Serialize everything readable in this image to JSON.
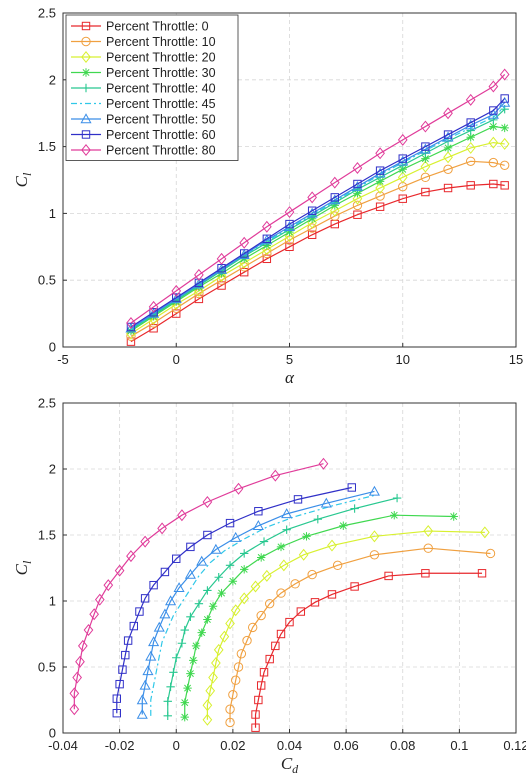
{
  "chart_data": [
    {
      "type": "line",
      "xlabel": "α",
      "ylabel": "C",
      "ylabel_sub": "l",
      "xlim": [
        -5,
        15
      ],
      "ylim": [
        0,
        2.5
      ],
      "xticks": [
        "-5",
        "0",
        "5",
        "10",
        "15"
      ],
      "yticks": [
        "0",
        "0.5",
        "1",
        "1.5",
        "2",
        "2.5"
      ],
      "grid": true,
      "legend_position": "top-left",
      "x": [
        -2,
        -1,
        0,
        1,
        2,
        3,
        4,
        5,
        6,
        7,
        8,
        9,
        10,
        11,
        12,
        13,
        14,
        14.5
      ],
      "series": [
        {
          "name": "Percent Throttle: 0",
          "color": "#e8282c",
          "marker": "square",
          "values": [
            0.04,
            0.14,
            0.25,
            0.36,
            0.46,
            0.56,
            0.66,
            0.75,
            0.84,
            0.92,
            0.99,
            1.05,
            1.11,
            1.16,
            1.19,
            1.21,
            1.22,
            1.21
          ]
        },
        {
          "name": "Percent Throttle: 10",
          "color": "#f0a040",
          "marker": "circle",
          "values": [
            0.08,
            0.18,
            0.29,
            0.4,
            0.5,
            0.6,
            0.7,
            0.8,
            0.89,
            0.98,
            1.06,
            1.13,
            1.2,
            1.27,
            1.33,
            1.39,
            1.38,
            1.36
          ]
        },
        {
          "name": "Percent Throttle: 20",
          "color": "#d8f030",
          "marker": "diamond",
          "values": [
            0.1,
            0.21,
            0.32,
            0.42,
            0.53,
            0.63,
            0.73,
            0.83,
            0.93,
            1.02,
            1.11,
            1.19,
            1.27,
            1.35,
            1.42,
            1.49,
            1.53,
            1.52
          ]
        },
        {
          "name": "Percent Throttle: 30",
          "color": "#40d850",
          "marker": "star",
          "values": [
            0.12,
            0.23,
            0.34,
            0.45,
            0.55,
            0.66,
            0.76,
            0.86,
            0.96,
            1.06,
            1.15,
            1.24,
            1.33,
            1.41,
            1.49,
            1.57,
            1.65,
            1.64
          ]
        },
        {
          "name": "Percent Throttle: 40",
          "color": "#28c890",
          "marker": "plus",
          "values": [
            0.13,
            0.24,
            0.35,
            0.46,
            0.57,
            0.68,
            0.78,
            0.88,
            0.98,
            1.08,
            1.18,
            1.27,
            1.36,
            1.45,
            1.54,
            1.62,
            1.7,
            1.78
          ]
        },
        {
          "name": "Percent Throttle: 45",
          "color": "#30c8e8",
          "marker": "none",
          "dash": true,
          "values": [
            0.13,
            0.25,
            0.36,
            0.47,
            0.58,
            0.69,
            0.79,
            0.89,
            0.99,
            1.09,
            1.19,
            1.29,
            1.38,
            1.47,
            1.56,
            1.64,
            1.72,
            1.8
          ]
        },
        {
          "name": "Percent Throttle: 50",
          "color": "#3a8ee8",
          "marker": "triangle",
          "values": [
            0.14,
            0.25,
            0.36,
            0.47,
            0.58,
            0.69,
            0.8,
            0.9,
            1.0,
            1.1,
            1.2,
            1.3,
            1.39,
            1.48,
            1.57,
            1.66,
            1.74,
            1.83
          ]
        },
        {
          "name": "Percent Throttle: 60",
          "color": "#3030c8",
          "marker": "square",
          "values": [
            0.15,
            0.26,
            0.37,
            0.48,
            0.59,
            0.7,
            0.81,
            0.92,
            1.02,
            1.12,
            1.22,
            1.32,
            1.41,
            1.5,
            1.59,
            1.68,
            1.77,
            1.86
          ]
        },
        {
          "name": "Percent Throttle: 80",
          "color": "#e03c9a",
          "marker": "diamond",
          "values": [
            0.18,
            0.3,
            0.42,
            0.54,
            0.66,
            0.78,
            0.9,
            1.01,
            1.12,
            1.23,
            1.34,
            1.45,
            1.55,
            1.65,
            1.75,
            1.85,
            1.95,
            2.04
          ]
        }
      ]
    },
    {
      "type": "line",
      "xlabel": "C",
      "xlabel_sub": "d",
      "ylabel": "C",
      "ylabel_sub": "l",
      "xlim": [
        -0.04,
        0.12
      ],
      "ylim": [
        0,
        2.5
      ],
      "xticks": [
        "-0.04",
        "-0.02",
        "0",
        "0.02",
        "0.04",
        "0.06",
        "0.08",
        "0.1",
        "0.12"
      ],
      "yticks": [
        "0",
        "0.5",
        "1",
        "1.5",
        "2",
        "2.5"
      ],
      "grid": true,
      "series": [
        {
          "name": "Percent Throttle: 0",
          "color": "#e8282c",
          "marker": "square",
          "x": [
            0.028,
            0.028,
            0.029,
            0.03,
            0.031,
            0.033,
            0.035,
            0.037,
            0.04,
            0.044,
            0.049,
            0.055,
            0.063,
            0.075,
            0.088,
            0.108
          ],
          "values": [
            0.04,
            0.14,
            0.25,
            0.36,
            0.46,
            0.56,
            0.66,
            0.75,
            0.84,
            0.92,
            0.99,
            1.05,
            1.11,
            1.19,
            1.21,
            1.21
          ]
        },
        {
          "name": "Percent Throttle: 10",
          "color": "#f0a040",
          "marker": "circle",
          "x": [
            0.019,
            0.019,
            0.02,
            0.021,
            0.022,
            0.023,
            0.025,
            0.027,
            0.03,
            0.033,
            0.037,
            0.042,
            0.048,
            0.057,
            0.07,
            0.089,
            0.111
          ],
          "values": [
            0.08,
            0.18,
            0.29,
            0.4,
            0.5,
            0.6,
            0.7,
            0.8,
            0.89,
            0.98,
            1.06,
            1.13,
            1.2,
            1.27,
            1.35,
            1.4,
            1.36
          ]
        },
        {
          "name": "Percent Throttle: 20",
          "color": "#d8f030",
          "marker": "diamond",
          "x": [
            0.011,
            0.011,
            0.012,
            0.013,
            0.014,
            0.015,
            0.017,
            0.019,
            0.021,
            0.024,
            0.028,
            0.032,
            0.038,
            0.045,
            0.055,
            0.07,
            0.089,
            0.109
          ],
          "values": [
            0.1,
            0.21,
            0.32,
            0.42,
            0.53,
            0.63,
            0.73,
            0.83,
            0.93,
            1.02,
            1.11,
            1.19,
            1.27,
            1.35,
            1.42,
            1.49,
            1.53,
            1.52
          ]
        },
        {
          "name": "Percent Throttle: 30",
          "color": "#40d850",
          "marker": "star",
          "x": [
            0.003,
            0.003,
            0.004,
            0.005,
            0.006,
            0.007,
            0.009,
            0.011,
            0.013,
            0.016,
            0.02,
            0.024,
            0.03,
            0.037,
            0.046,
            0.059,
            0.077,
            0.098
          ],
          "values": [
            0.12,
            0.23,
            0.34,
            0.45,
            0.55,
            0.66,
            0.76,
            0.86,
            0.96,
            1.06,
            1.15,
            1.24,
            1.33,
            1.41,
            1.49,
            1.57,
            1.65,
            1.64
          ]
        },
        {
          "name": "Percent Throttle: 40",
          "color": "#28c890",
          "marker": "plus",
          "x": [
            -0.003,
            -0.003,
            -0.002,
            -0.001,
            0.0,
            0.002,
            0.003,
            0.005,
            0.008,
            0.011,
            0.015,
            0.019,
            0.024,
            0.031,
            0.039,
            0.05,
            0.063,
            0.078
          ],
          "values": [
            0.13,
            0.24,
            0.35,
            0.46,
            0.57,
            0.68,
            0.78,
            0.88,
            0.98,
            1.08,
            1.18,
            1.27,
            1.36,
            1.45,
            1.54,
            1.62,
            1.7,
            1.78
          ]
        },
        {
          "name": "Percent Throttle: 45",
          "color": "#30c8e8",
          "marker": "none",
          "dash": true,
          "x": [
            -0.009,
            -0.009,
            -0.008,
            -0.007,
            -0.006,
            -0.005,
            -0.003,
            -0.001,
            0.002,
            0.005,
            0.008,
            0.012,
            0.017,
            0.024,
            0.032,
            0.042,
            0.055,
            0.07
          ],
          "values": [
            0.13,
            0.25,
            0.36,
            0.47,
            0.58,
            0.69,
            0.79,
            0.89,
            0.99,
            1.09,
            1.19,
            1.29,
            1.38,
            1.47,
            1.56,
            1.64,
            1.72,
            1.8
          ]
        },
        {
          "name": "Percent Throttle: 50",
          "color": "#3a8ee8",
          "marker": "triangle",
          "x": [
            -0.012,
            -0.012,
            -0.011,
            -0.01,
            -0.009,
            -0.008,
            -0.006,
            -0.004,
            -0.002,
            0.001,
            0.005,
            0.009,
            0.014,
            0.021,
            0.029,
            0.039,
            0.053,
            0.07
          ],
          "values": [
            0.14,
            0.25,
            0.36,
            0.47,
            0.58,
            0.69,
            0.8,
            0.9,
            1.0,
            1.1,
            1.2,
            1.3,
            1.39,
            1.48,
            1.57,
            1.66,
            1.74,
            1.83
          ]
        },
        {
          "name": "Percent Throttle: 60",
          "color": "#3030c8",
          "marker": "square",
          "x": [
            -0.021,
            -0.021,
            -0.02,
            -0.019,
            -0.018,
            -0.017,
            -0.015,
            -0.013,
            -0.011,
            -0.008,
            -0.004,
            0.0,
            0.005,
            0.011,
            0.019,
            0.029,
            0.043,
            0.062
          ],
          "values": [
            0.15,
            0.26,
            0.37,
            0.48,
            0.59,
            0.7,
            0.81,
            0.92,
            1.02,
            1.12,
            1.22,
            1.32,
            1.41,
            1.5,
            1.59,
            1.68,
            1.77,
            1.86
          ]
        },
        {
          "name": "Percent Throttle: 80",
          "color": "#e03c9a",
          "marker": "diamond",
          "x": [
            -0.036,
            -0.036,
            -0.035,
            -0.034,
            -0.033,
            -0.031,
            -0.029,
            -0.027,
            -0.024,
            -0.02,
            -0.016,
            -0.011,
            -0.005,
            0.002,
            0.011,
            0.022,
            0.035,
            0.052
          ],
          "values": [
            0.18,
            0.3,
            0.42,
            0.54,
            0.66,
            0.78,
            0.9,
            1.01,
            1.12,
            1.23,
            1.34,
            1.45,
            1.55,
            1.65,
            1.75,
            1.85,
            1.95,
            2.04
          ]
        }
      ]
    }
  ]
}
